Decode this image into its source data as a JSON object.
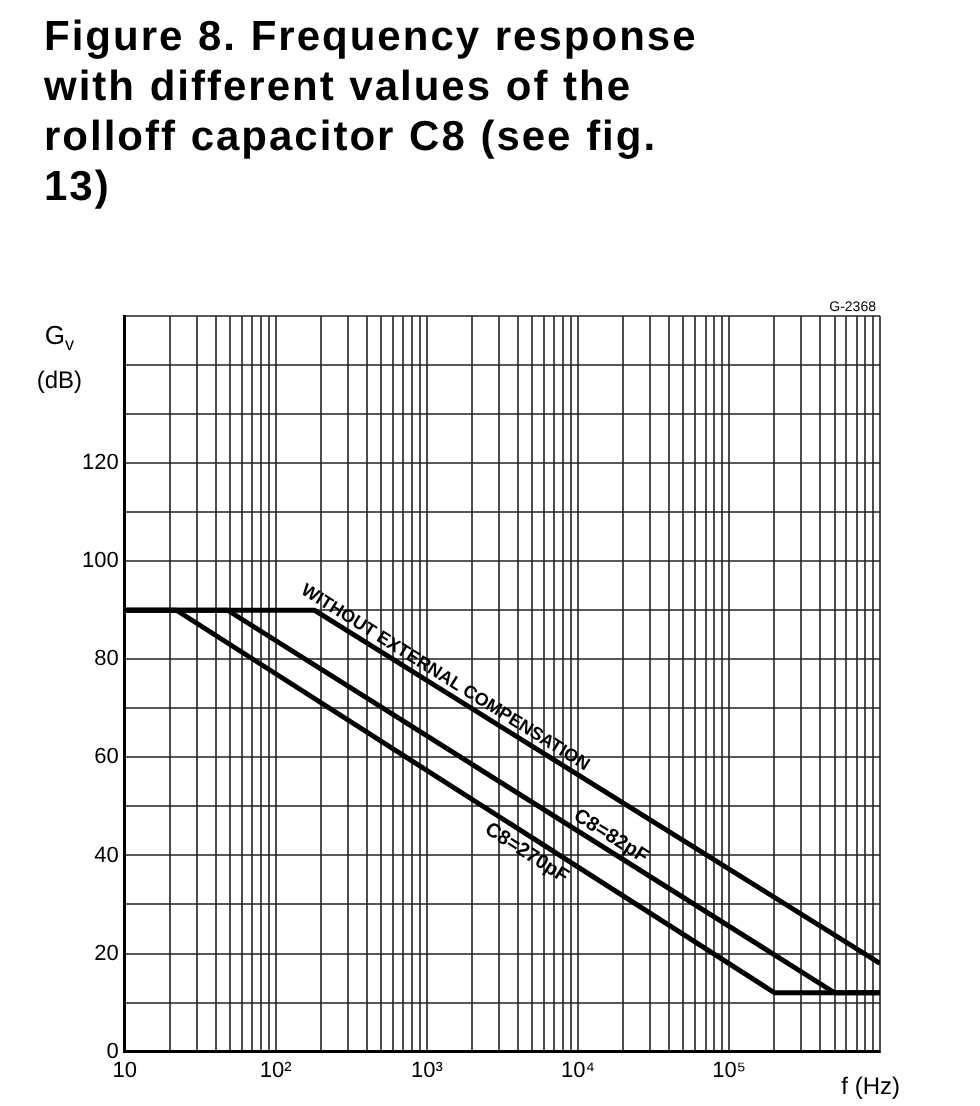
{
  "chart_data": {
    "type": "line",
    "title": "Figure 8. Frequency response with different values of the rolloff capacitor C8 (see fig. 13)",
    "xlabel": "f (Hz)",
    "ylabel": "G$_{v}$ (dB)",
    "annotations": [
      "G-2368"
    ],
    "log": "x",
    "grid": true,
    "legend": false,
    "marker": "none",
    "line_style": "solid",
    "xlim": [
      10,
      1000000
    ],
    "ylim": [
      0,
      150
    ],
    "xticks": [
      {
        "value": 10,
        "label": "10"
      },
      {
        "value": 20,
        "label": null
      },
      {
        "value": 30,
        "label": null
      },
      {
        "value": 40,
        "label": null
      },
      {
        "value": 50,
        "label": null
      },
      {
        "value": 60,
        "label": null
      },
      {
        "value": 70,
        "label": null
      },
      {
        "value": 80,
        "label": null
      },
      {
        "value": 90,
        "label": null
      },
      {
        "value": 100,
        "label": "10²"
      },
      {
        "value": 200,
        "label": null
      },
      {
        "value": 300,
        "label": null
      },
      {
        "value": 400,
        "label": null
      },
      {
        "value": 500,
        "label": null
      },
      {
        "value": 600,
        "label": null
      },
      {
        "value": 700,
        "label": null
      },
      {
        "value": 800,
        "label": null
      },
      {
        "value": 900,
        "label": null
      },
      {
        "value": 1000,
        "label": "10³"
      },
      {
        "value": 2000,
        "label": null
      },
      {
        "value": 3000,
        "label": null
      },
      {
        "value": 4000,
        "label": null
      },
      {
        "value": 5000,
        "label": null
      },
      {
        "value": 6000,
        "label": null
      },
      {
        "value": 7000,
        "label": null
      },
      {
        "value": 8000,
        "label": null
      },
      {
        "value": 9000,
        "label": null
      },
      {
        "value": 10000,
        "label": "10⁴"
      },
      {
        "value": 20000,
        "label": null
      },
      {
        "value": 30000,
        "label": null
      },
      {
        "value": 40000,
        "label": null
      },
      {
        "value": 50000,
        "label": null
      },
      {
        "value": 60000,
        "label": null
      },
      {
        "value": 70000,
        "label": null
      },
      {
        "value": 80000,
        "label": null
      },
      {
        "value": 90000,
        "label": null
      },
      {
        "value": 100000,
        "label": "10⁵"
      },
      {
        "value": 200000,
        "label": null
      },
      {
        "value": 300000,
        "label": null
      },
      {
        "value": 400000,
        "label": null
      },
      {
        "value": 500000,
        "label": null
      },
      {
        "value": 600000,
        "label": null
      },
      {
        "value": 700000,
        "label": null
      },
      {
        "value": 800000,
        "label": null
      },
      {
        "value": 900000,
        "label": null
      },
      {
        "value": 1000000,
        "label": null
      }
    ],
    "yticks": [
      0,
      {
        "value": 10,
        "label": null
      },
      20,
      {
        "value": 30,
        "label": null
      },
      40,
      {
        "value": 50,
        "label": null
      },
      60,
      {
        "value": 70,
        "label": null
      },
      80,
      {
        "value": 90,
        "label": null
      },
      100,
      {
        "value": 110,
        "label": null
      },
      120,
      {
        "value": 130,
        "label": null
      },
      {
        "value": 140,
        "label": null
      },
      {
        "value": 150,
        "label": null
      }
    ],
    "series": [
      {
        "name": "WITHOUT EXTERNAL COMPENSATION",
        "color": "#000000",
        "x": [
          10,
          180,
          1000000
        ],
        "values": [
          90,
          90,
          18
        ]
      },
      {
        "name": "C8=82pF",
        "color": "#000000",
        "x": [
          10,
          48,
          500000,
          1000000
        ],
        "values": [
          90,
          90,
          12,
          12
        ]
      },
      {
        "name": "C8=270pF",
        "color": "#000000",
        "x": [
          10,
          22,
          200000,
          1000000
        ],
        "values": [
          90,
          90,
          12,
          12
        ]
      }
    ]
  }
}
